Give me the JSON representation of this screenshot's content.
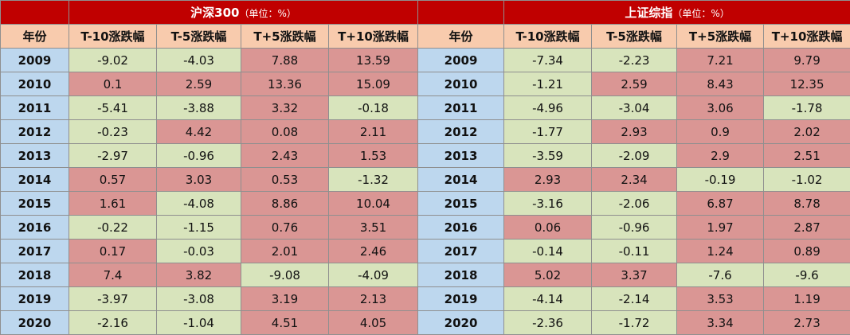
{
  "groups": [
    {
      "title": "沪深300",
      "unit": "（单位：%）"
    },
    {
      "title": "上证综指",
      "unit": "（单位：%）"
    }
  ],
  "columns": [
    "年份",
    "T-10涨跌幅",
    "T-5涨跌幅",
    "T+5涨跌幅",
    "T+10涨跌幅"
  ],
  "colors": {
    "positive": "#da9694",
    "negative": "#d8e4bc",
    "year": "#bdd7ee",
    "header": "#f8cbad",
    "title_bar": "#c00000"
  },
  "rows": [
    {
      "year": "2009",
      "hs300": [
        "-9.02",
        "-4.03",
        "7.88",
        "13.59"
      ],
      "sh": [
        "-7.34",
        "-2.23",
        "7.21",
        "9.79"
      ]
    },
    {
      "year": "2010",
      "hs300": [
        "0.1",
        "2.59",
        "13.36",
        "15.09"
      ],
      "sh": [
        "-1.21",
        "2.59",
        "8.43",
        "12.35"
      ]
    },
    {
      "year": "2011",
      "hs300": [
        "-5.41",
        "-3.88",
        "3.32",
        "-0.18"
      ],
      "sh": [
        "-4.96",
        "-3.04",
        "3.06",
        "-1.78"
      ]
    },
    {
      "year": "2012",
      "hs300": [
        "-0.23",
        "4.42",
        "0.08",
        "2.11"
      ],
      "sh": [
        "-1.77",
        "2.93",
        "0.9",
        "2.02"
      ]
    },
    {
      "year": "2013",
      "hs300": [
        "-2.97",
        "-0.96",
        "2.43",
        "1.53"
      ],
      "sh": [
        "-3.59",
        "-2.09",
        "2.9",
        "2.51"
      ]
    },
    {
      "year": "2014",
      "hs300": [
        "0.57",
        "3.03",
        "0.53",
        "-1.32"
      ],
      "sh": [
        "2.93",
        "2.34",
        "-0.19",
        "-1.02"
      ]
    },
    {
      "year": "2015",
      "hs300": [
        "1.61",
        "-4.08",
        "8.86",
        "10.04"
      ],
      "sh": [
        "-3.16",
        "-2.06",
        "6.87",
        "8.78"
      ]
    },
    {
      "year": "2016",
      "hs300": [
        "-0.22",
        "-1.15",
        "0.76",
        "3.51"
      ],
      "sh": [
        "0.06",
        "-0.96",
        "1.97",
        "2.87"
      ]
    },
    {
      "year": "2017",
      "hs300": [
        "0.17",
        "-0.03",
        "2.01",
        "2.46"
      ],
      "sh": [
        "-0.14",
        "-0.11",
        "1.24",
        "0.89"
      ]
    },
    {
      "year": "2018",
      "hs300": [
        "7.4",
        "3.82",
        "-9.08",
        "-4.09"
      ],
      "sh": [
        "5.02",
        "3.37",
        "-7.6",
        "-9.6"
      ]
    },
    {
      "year": "2019",
      "hs300": [
        "-3.97",
        "-3.08",
        "3.19",
        "2.13"
      ],
      "sh": [
        "-4.14",
        "-2.14",
        "3.53",
        "1.19"
      ]
    },
    {
      "year": "2020",
      "hs300": [
        "-2.16",
        "-1.04",
        "4.51",
        "4.05"
      ],
      "sh": [
        "-2.36",
        "-1.72",
        "3.34",
        "2.73"
      ]
    }
  ]
}
